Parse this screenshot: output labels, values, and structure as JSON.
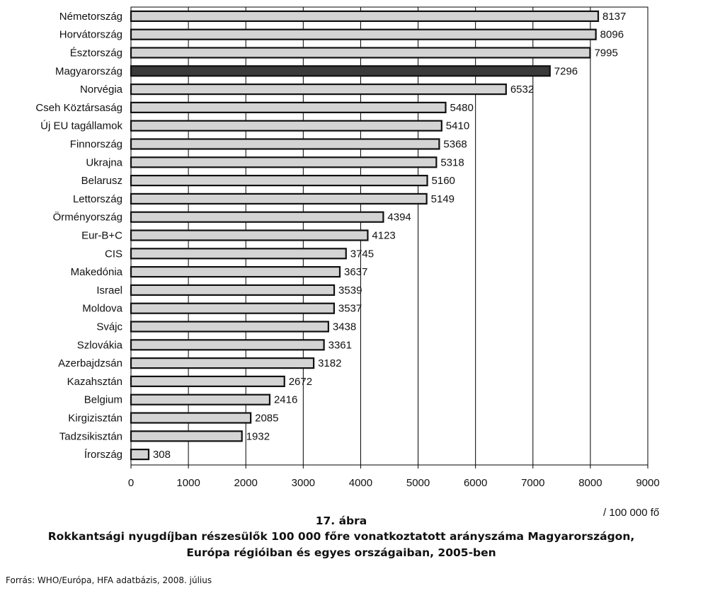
{
  "chart_data": {
    "type": "bar",
    "orientation": "horizontal",
    "categories": [
      "Németország",
      "Horvátország",
      "Észtország",
      "Magyarország",
      "Norvégia",
      "Cseh Köztársaság",
      "Új EU tagállamok",
      "Finnország",
      "Ukrajna",
      "Belarusz",
      "Lettország",
      "Örményország",
      "Eur-B+C",
      "CIS",
      "Makedónia",
      "Israel",
      "Moldova",
      "Svájc",
      "Szlovákia",
      "Azerbajdzsán",
      "Kazahsztán",
      "Belgium",
      "Kirgizisztán",
      "Tadzsikisztán",
      "Írország"
    ],
    "values": [
      8137,
      8096,
      7995,
      7296,
      6532,
      5480,
      5410,
      5368,
      5318,
      5160,
      5149,
      4394,
      4123,
      3745,
      3637,
      3539,
      3537,
      3438,
      3361,
      3182,
      2672,
      2416,
      2085,
      1932,
      308
    ],
    "value_labels": [
      "8137",
      "8096",
      "7995",
      "7296",
      "6532",
      "5480",
      "5410",
      "5368",
      "5318",
      "5160",
      "5149",
      "4394",
      "4123",
      "3745",
      "3637",
      "3539",
      "3537",
      "3438",
      "3361",
      "3182",
      "2672",
      "2416",
      "2085",
      "1932",
      "308"
    ],
    "highlight": "Magyarország",
    "xlim": [
      0,
      9000
    ],
    "xticks": [
      "0",
      "1000",
      "2000",
      "3000",
      "4000",
      "5000",
      "6000",
      "7000",
      "8000",
      "9000"
    ],
    "xlabel": "/ 100 000 fő",
    "grid": "vertical",
    "colors": {
      "bar": "#d4d4d4",
      "highlight": "#3a3a3a",
      "outline": "#111111",
      "grid": "#000000"
    }
  },
  "caption": {
    "number": "17. ábra",
    "title_line1": "Rokkantsági nyugdíjban részesülők 100 000 főre vonatkoztatott arányszáma Magyarországon,",
    "title_line2": "Európa régióiban és egyes országaiban, 2005-ben"
  },
  "source": "Forrás: WHO/Európa, HFA adatbázis, 2008. július"
}
